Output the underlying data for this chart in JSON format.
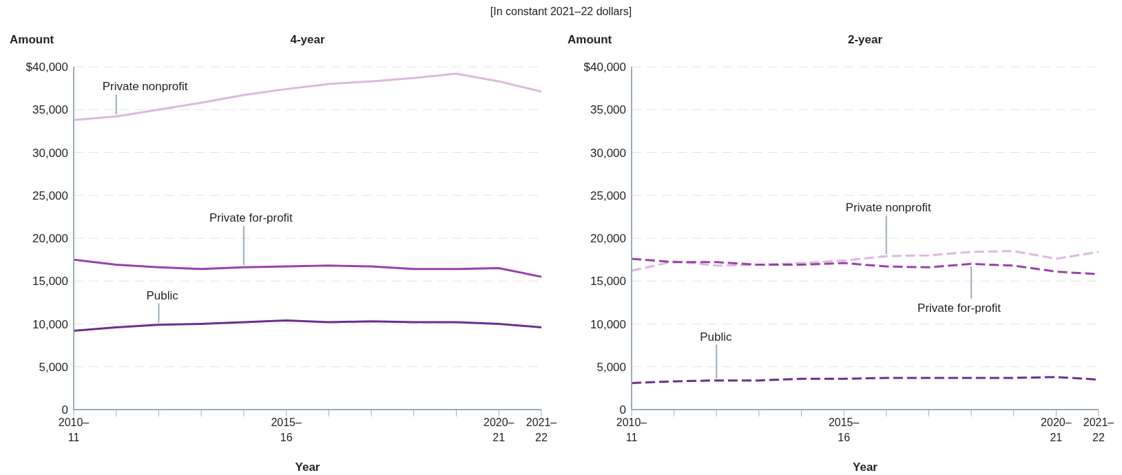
{
  "chart_data": [
    {
      "type": "line",
      "subtitle": "[In constant 2021–22 dollars]",
      "title": "4-year",
      "ylabel": "Amount",
      "xlabel": "Year",
      "line_style": "solid",
      "grid": "y",
      "marker": "none",
      "categories": [
        "2010–11",
        null,
        null,
        null,
        null,
        "2015–16",
        null,
        null,
        null,
        null,
        "2020–21",
        "2021–22"
      ],
      "ylim": [
        0,
        40000
      ],
      "yticks": [
        {
          "value": 0,
          "label": "0"
        },
        {
          "value": 5000,
          "label": "5,000"
        },
        {
          "value": 10000,
          "label": "10,000"
        },
        {
          "value": 15000,
          "label": "15,000"
        },
        {
          "value": 20000,
          "label": "20,000"
        },
        {
          "value": 25000,
          "label": "25,000"
        },
        {
          "value": 30000,
          "label": "30,000"
        },
        {
          "value": 35000,
          "label": "35,000"
        },
        {
          "value": 40000,
          "label": "$40,000"
        }
      ],
      "series": [
        {
          "name": "Private nonprofit",
          "color": "#dcb8dc",
          "values": [
            33800,
            34200,
            35000,
            35800,
            36700,
            37400,
            38000,
            38300,
            38700,
            39200,
            38300,
            37100
          ]
        },
        {
          "name": "Private for-profit",
          "color": "#9b3fae",
          "values": [
            17500,
            16900,
            16600,
            16400,
            16600,
            16700,
            16800,
            16700,
            16400,
            16400,
            16500,
            15500
          ]
        },
        {
          "name": "Public",
          "color": "#6a2e8e",
          "values": [
            9200,
            9600,
            9900,
            10000,
            10200,
            10400,
            10200,
            10300,
            10200,
            10200,
            10000,
            9600
          ]
        }
      ]
    },
    {
      "type": "line",
      "title": "2-year",
      "ylabel": "Amount",
      "xlabel": "Year",
      "line_style": "dashed",
      "grid": "y",
      "marker": "none",
      "categories": [
        "2010–11",
        null,
        null,
        null,
        null,
        "2015–16",
        null,
        null,
        null,
        null,
        "2020–21",
        "2021–22"
      ],
      "ylim": [
        0,
        40000
      ],
      "yticks": [
        {
          "value": 0,
          "label": "0"
        },
        {
          "value": 5000,
          "label": "5,000"
        },
        {
          "value": 10000,
          "label": "10,000"
        },
        {
          "value": 15000,
          "label": "15,000"
        },
        {
          "value": 20000,
          "label": "20,000"
        },
        {
          "value": 25000,
          "label": "25,000"
        },
        {
          "value": 30000,
          "label": "30,000"
        },
        {
          "value": 35000,
          "label": "35,000"
        },
        {
          "value": 40000,
          "label": "$40,000"
        }
      ],
      "series": [
        {
          "name": "Private nonprofit",
          "color": "#dcb8dc",
          "values": [
            16200,
            17300,
            16800,
            16900,
            17100,
            17400,
            17900,
            18000,
            18400,
            18500,
            17600,
            18400
          ]
        },
        {
          "name": "Private for-profit",
          "color": "#9b3fae",
          "values": [
            17600,
            17200,
            17200,
            16900,
            16900,
            17100,
            16700,
            16600,
            17000,
            16800,
            16100,
            15800
          ]
        },
        {
          "name": "Public",
          "color": "#6a2e8e",
          "values": [
            3100,
            3300,
            3400,
            3400,
            3600,
            3600,
            3700,
            3700,
            3700,
            3700,
            3800,
            3500
          ]
        }
      ]
    }
  ]
}
